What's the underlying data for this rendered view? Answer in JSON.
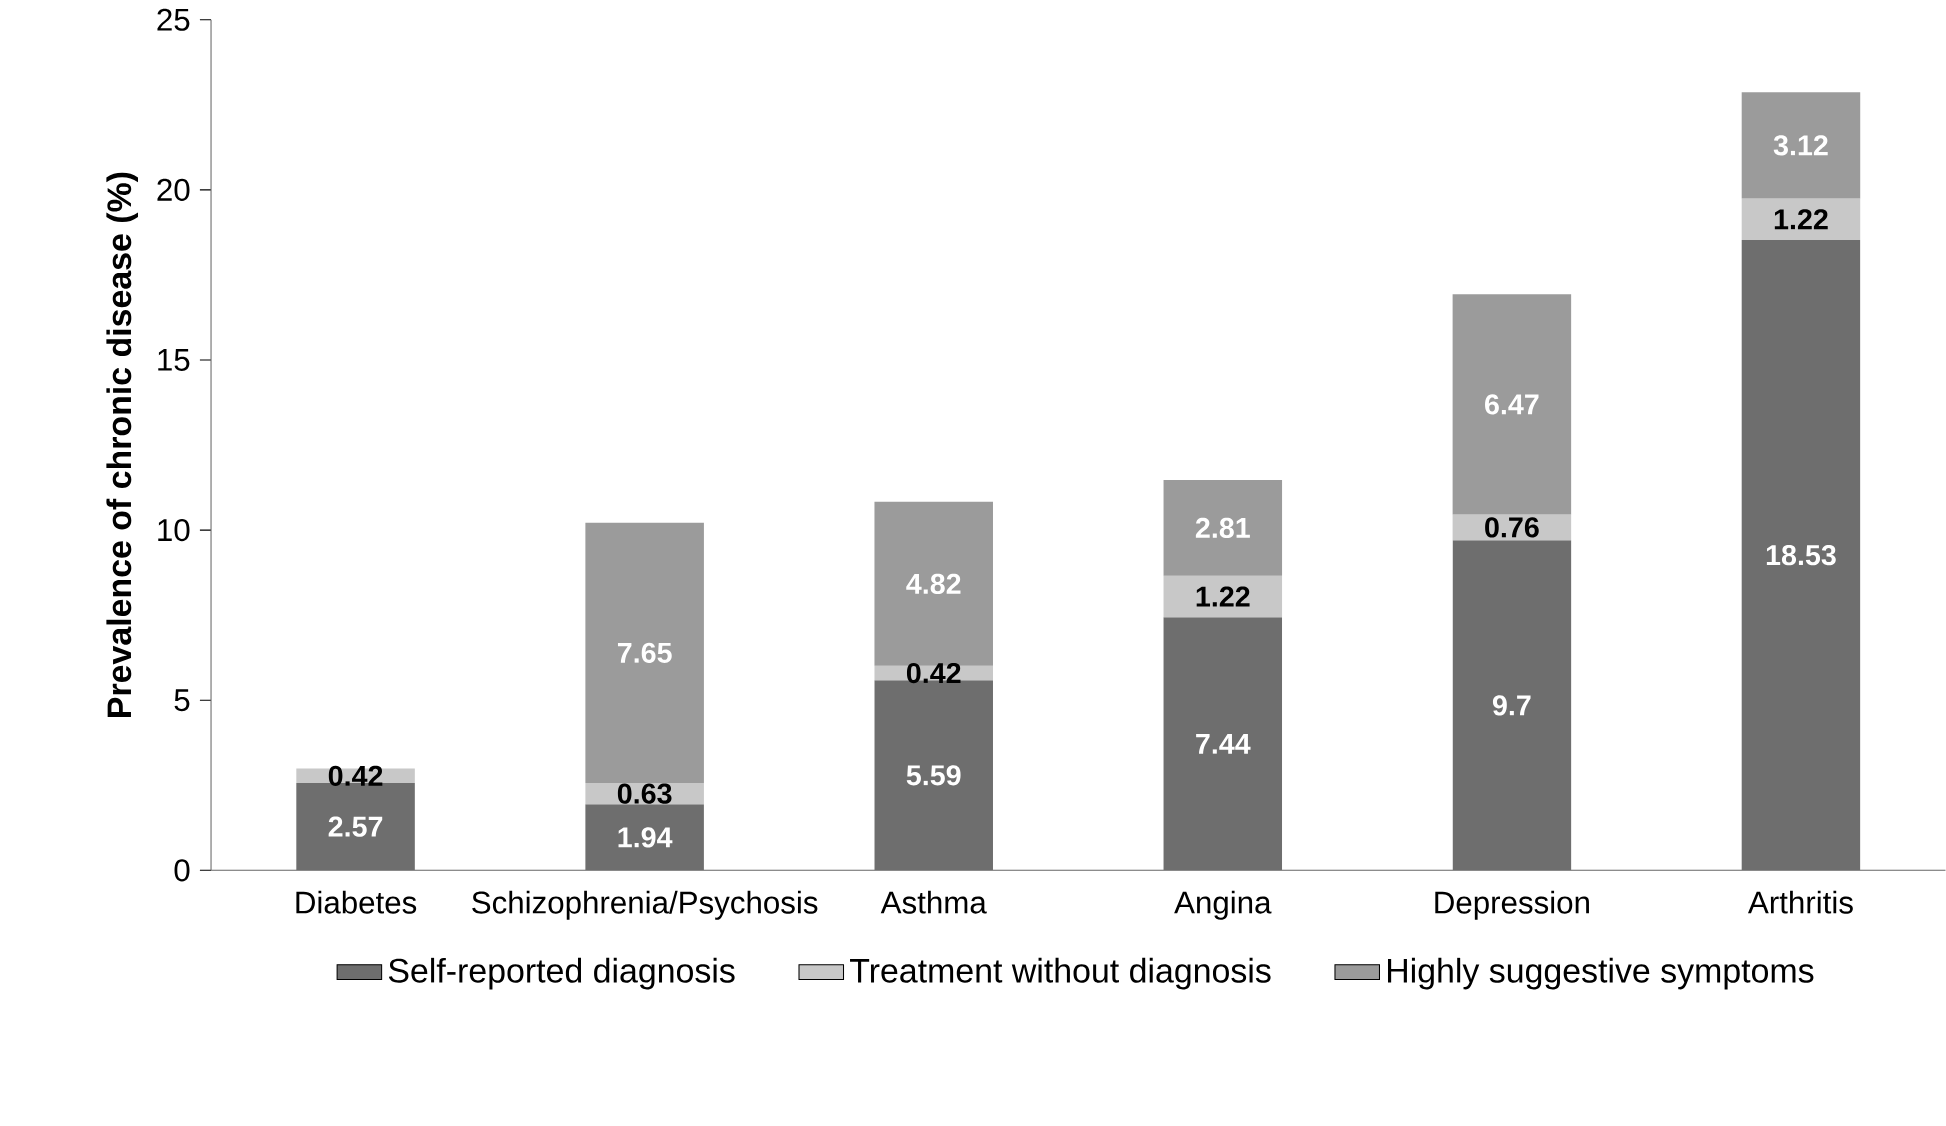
{
  "chart_data": {
    "type": "bar",
    "stacked": true,
    "ylabel": "Prevalence of chronic disease (%)",
    "categories": [
      "Diabetes",
      "Schizophrenia/Psychosis",
      "Asthma",
      "Angina",
      "Depression",
      "Arthritis"
    ],
    "series": [
      {
        "name": "Self-reported diagnosis",
        "color": "#6e6e6e",
        "values": [
          2.57,
          1.94,
          5.59,
          7.44,
          9.7,
          18.53
        ]
      },
      {
        "name": "Treatment without diagnosis",
        "color": "#c8c8c8",
        "values": [
          0.42,
          0.63,
          0.42,
          1.22,
          0.76,
          1.22
        ]
      },
      {
        "name": "Highly suggestive symptoms",
        "color": "#9b9b9b",
        "values": [
          null,
          7.65,
          4.82,
          2.81,
          6.47,
          3.12
        ]
      }
    ],
    "ylim": [
      0,
      25
    ],
    "yticks": [
      0,
      5,
      10,
      15,
      20,
      25
    ],
    "data_labels": true,
    "legend": "bottom",
    "grid": false
  }
}
